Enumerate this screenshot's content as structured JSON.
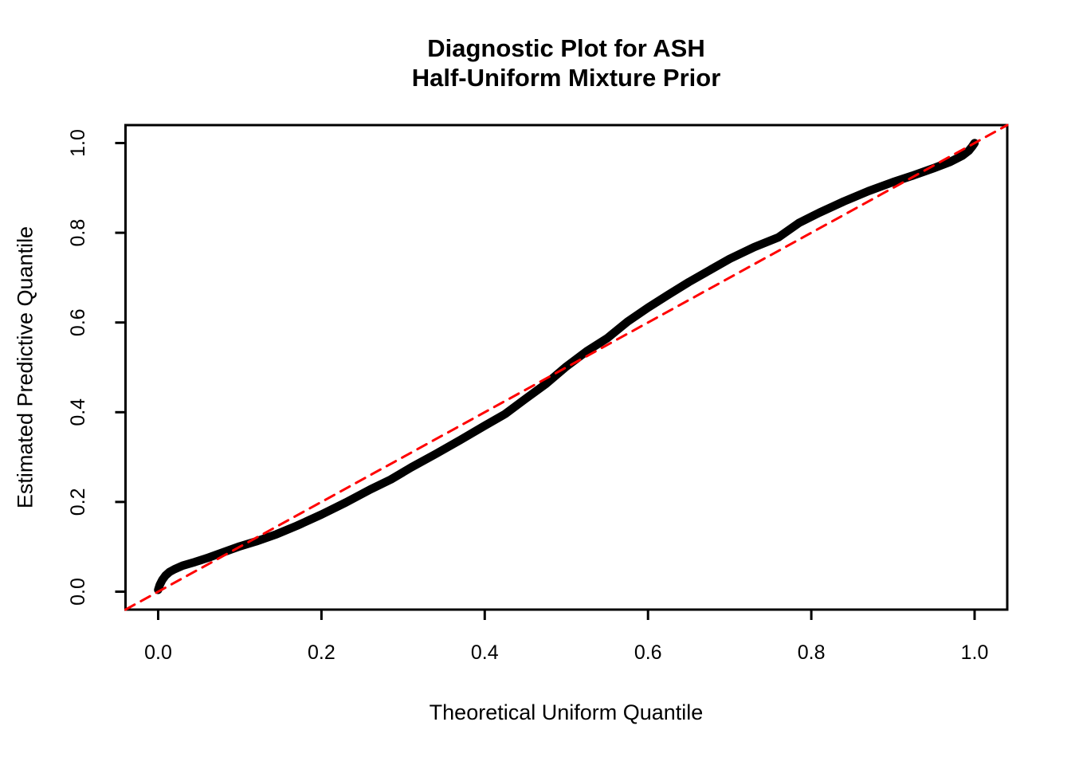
{
  "chart": {
    "title_line1": "Diagnostic Plot for ASH",
    "title_line2": "Half-Uniform Mixture Prior",
    "xlabel": "Theoretical Uniform Quantile",
    "ylabel": "Estimated Predictive Quantile"
  },
  "chart_data": {
    "type": "line",
    "title": "Diagnostic Plot for ASH\nHalf-Uniform Mixture Prior",
    "xlabel": "Theoretical Uniform Quantile",
    "ylabel": "Estimated Predictive Quantile",
    "xlim": [
      -0.04,
      1.04
    ],
    "ylim": [
      -0.04,
      1.04
    ],
    "grid": false,
    "legend": "none",
    "x_ticks": [
      0.0,
      0.2,
      0.4,
      0.6,
      0.8,
      1.0
    ],
    "y_ticks": [
      0.0,
      0.2,
      0.4,
      0.6,
      0.8,
      1.0
    ],
    "x_tick_labels": [
      "0.0",
      "0.2",
      "0.4",
      "0.6",
      "0.8",
      "1.0"
    ],
    "y_tick_labels": [
      "0.0",
      "0.2",
      "0.4",
      "0.6",
      "0.8",
      "1.0"
    ],
    "series": [
      {
        "name": "estimated-vs-theoretical-quantile-curve",
        "type": "line",
        "color": "#000000",
        "width": 10.5,
        "style": "solid",
        "points": [
          [
            0.0,
            0.004
          ],
          [
            0.002,
            0.015
          ],
          [
            0.005,
            0.026
          ],
          [
            0.009,
            0.036
          ],
          [
            0.014,
            0.044
          ],
          [
            0.02,
            0.05
          ],
          [
            0.03,
            0.058
          ],
          [
            0.045,
            0.066
          ],
          [
            0.06,
            0.075
          ],
          [
            0.08,
            0.088
          ],
          [
            0.1,
            0.101
          ],
          [
            0.12,
            0.112
          ],
          [
            0.145,
            0.128
          ],
          [
            0.17,
            0.147
          ],
          [
            0.2,
            0.172
          ],
          [
            0.23,
            0.199
          ],
          [
            0.26,
            0.228
          ],
          [
            0.285,
            0.25
          ],
          [
            0.31,
            0.277
          ],
          [
            0.34,
            0.307
          ],
          [
            0.37,
            0.338
          ],
          [
            0.4,
            0.37
          ],
          [
            0.425,
            0.396
          ],
          [
            0.45,
            0.43
          ],
          [
            0.475,
            0.463
          ],
          [
            0.5,
            0.502
          ],
          [
            0.525,
            0.536
          ],
          [
            0.55,
            0.565
          ],
          [
            0.575,
            0.602
          ],
          [
            0.6,
            0.633
          ],
          [
            0.625,
            0.662
          ],
          [
            0.65,
            0.69
          ],
          [
            0.675,
            0.716
          ],
          [
            0.7,
            0.742
          ],
          [
            0.73,
            0.768
          ],
          [
            0.76,
            0.79
          ],
          [
            0.785,
            0.822
          ],
          [
            0.81,
            0.845
          ],
          [
            0.84,
            0.87
          ],
          [
            0.87,
            0.893
          ],
          [
            0.9,
            0.913
          ],
          [
            0.925,
            0.928
          ],
          [
            0.95,
            0.944
          ],
          [
            0.97,
            0.958
          ],
          [
            0.985,
            0.972
          ],
          [
            0.993,
            0.983
          ],
          [
            0.997,
            0.992
          ],
          [
            1.0,
            1.0
          ]
        ]
      },
      {
        "name": "y-equals-x-reference-line",
        "type": "line",
        "color": "#FF0000",
        "width": 3,
        "style": "dashed",
        "points": [
          [
            -0.04,
            -0.04
          ],
          [
            1.04,
            1.04
          ]
        ]
      }
    ]
  }
}
